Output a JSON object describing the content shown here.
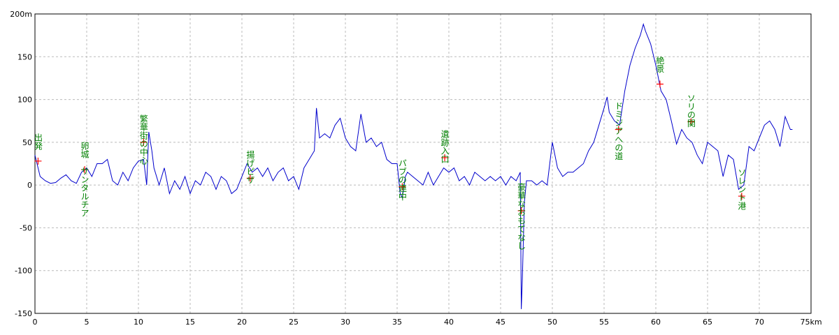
{
  "chart_data": {
    "type": "line",
    "color": "#0000cc",
    "marker_color": "#ff0000",
    "label_color": "#008000",
    "grid": true,
    "xlim": [
      0,
      75
    ],
    "ylim": [
      -150,
      200
    ],
    "xticks": [
      0,
      5,
      10,
      15,
      20,
      25,
      30,
      35,
      40,
      45,
      50,
      55,
      60,
      65,
      70,
      {
        "value": 75,
        "label": "75km"
      }
    ],
    "yticks": [
      -150,
      -100,
      -50,
      0,
      50,
      100,
      150,
      {
        "value": 200,
        "label": "200m"
      }
    ],
    "x": [
      0,
      0.5,
      1,
      1.5,
      2,
      2.5,
      3,
      3.5,
      4,
      4.5,
      5,
      5.5,
      6,
      6.5,
      7,
      7.5,
      8,
      8.5,
      9,
      9.5,
      10,
      10.5,
      10.8,
      11,
      11.3,
      11.5,
      12,
      12.5,
      13,
      13.5,
      14,
      14.5,
      15,
      15.5,
      16,
      16.5,
      17,
      17.5,
      18,
      18.5,
      19,
      19.5,
      20,
      20.5,
      21,
      21.5,
      22,
      22.5,
      23,
      23.5,
      24,
      24.5,
      25,
      25.5,
      26,
      26.5,
      27,
      27.2,
      27.5,
      28,
      28.5,
      29,
      29.5,
      30,
      30.5,
      31,
      31.5,
      32,
      32.5,
      33,
      33.5,
      34,
      34.5,
      35,
      35.3,
      35.5,
      35.8,
      36,
      36.5,
      37,
      37.5,
      38,
      38.5,
      39,
      39.5,
      40,
      40.5,
      41,
      41.5,
      42,
      42.5,
      43,
      43.5,
      44,
      44.5,
      45,
      45.5,
      46,
      46.5,
      46.9,
      47,
      47.1,
      47.3,
      47.5,
      48,
      48.5,
      49,
      49.5,
      50,
      50.5,
      51,
      51.5,
      52,
      52.5,
      53,
      53.5,
      54,
      54.5,
      55,
      55.3,
      55.5,
      56,
      56.5,
      57,
      57.5,
      58,
      58.5,
      58.8,
      59,
      59.5,
      60,
      60.5,
      61,
      61.5,
      62,
      62.5,
      63,
      63.5,
      64,
      64.5,
      65,
      65.5,
      66,
      66.5,
      67,
      67.5,
      68,
      68.5,
      69,
      69.5,
      70,
      70.5,
      71,
      71.5,
      72,
      72.5,
      73,
      73.2
    ],
    "values": [
      35,
      10,
      5,
      2,
      3,
      8,
      12,
      5,
      2,
      15,
      20,
      10,
      25,
      25,
      30,
      5,
      0,
      15,
      5,
      20,
      28,
      30,
      0,
      62,
      40,
      20,
      0,
      20,
      -10,
      5,
      -5,
      10,
      -10,
      5,
      0,
      15,
      10,
      -5,
      10,
      5,
      -10,
      -5,
      10,
      25,
      15,
      20,
      10,
      20,
      5,
      15,
      20,
      5,
      10,
      -5,
      20,
      30,
      40,
      90,
      55,
      60,
      55,
      70,
      78,
      55,
      45,
      40,
      83,
      50,
      55,
      45,
      50,
      30,
      25,
      25,
      -10,
      -15,
      10,
      15,
      10,
      5,
      0,
      15,
      0,
      10,
      20,
      15,
      20,
      5,
      10,
      0,
      15,
      10,
      5,
      10,
      5,
      10,
      0,
      10,
      5,
      15,
      -145,
      -110,
      -20,
      5,
      5,
      0,
      5,
      0,
      50,
      20,
      10,
      15,
      15,
      20,
      25,
      40,
      50,
      70,
      90,
      103,
      85,
      75,
      70,
      110,
      140,
      160,
      175,
      188,
      180,
      165,
      140,
      110,
      100,
      75,
      48,
      65,
      55,
      50,
      35,
      25,
      50,
      45,
      40,
      10,
      35,
      30,
      -5,
      0,
      45,
      40,
      55,
      70,
      75,
      65,
      45,
      80,
      65,
      65
    ],
    "annotations": [
      {
        "x": 0.3,
        "y": 28,
        "label": "出発"
      },
      {
        "x": 4.8,
        "y": 18,
        "label": "卵城　サンタルチア"
      },
      {
        "x": 10.5,
        "y": 50,
        "label": "繁華街の中心"
      },
      {
        "x": 20.8,
        "y": 8,
        "label": "揚げピザ"
      },
      {
        "x": 35.5,
        "y": -2,
        "label": "パブの連中"
      },
      {
        "x": 39.6,
        "y": 32,
        "label": "遺跡入口"
      },
      {
        "x": 47,
        "y": -30,
        "label": "豪華なおもてなし"
      },
      {
        "x": 56.4,
        "y": 65,
        "label": "ドミジアへの道"
      },
      {
        "x": 60.4,
        "y": 118,
        "label": "絶景"
      },
      {
        "x": 63.4,
        "y": 74,
        "label": "ソリの関"
      },
      {
        "x": 68.3,
        "y": -13,
        "label": "ソレント港"
      }
    ]
  }
}
